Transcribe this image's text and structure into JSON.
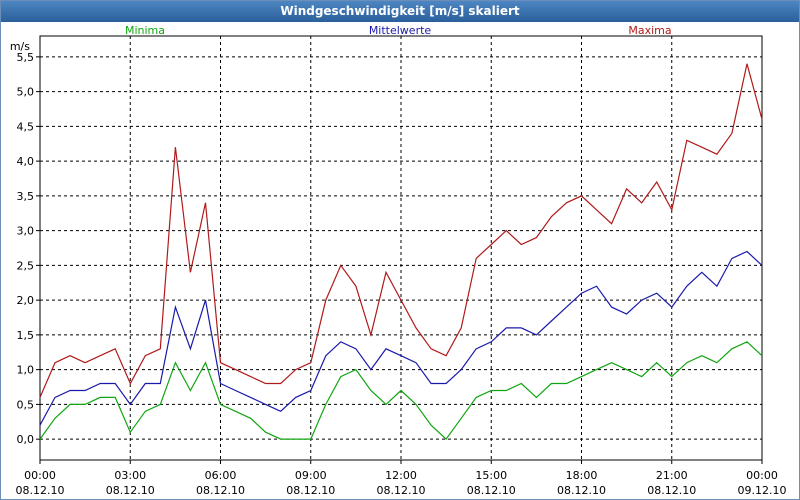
{
  "chart_data": {
    "type": "line",
    "title": "Windgeschwindigkeit [m/s] skaliert",
    "ylabel": "m/s",
    "xlabel": "",
    "ylim": [
      -0.3,
      5.8
    ],
    "y_ticks": [
      "0,0",
      "0,5",
      "1,0",
      "1,5",
      "2,0",
      "2,5",
      "3,0",
      "3,5",
      "4,0",
      "4,5",
      "5,0",
      "5,5"
    ],
    "y_tick_values": [
      0,
      0.5,
      1,
      1.5,
      2,
      2.5,
      3,
      3.5,
      4,
      4.5,
      5,
      5.5
    ],
    "x_ticks": [
      {
        "time": "00:00",
        "date": "08.12.10"
      },
      {
        "time": "03:00",
        "date": "08.12.10"
      },
      {
        "time": "06:00",
        "date": "08.12.10"
      },
      {
        "time": "09:00",
        "date": "08.12.10"
      },
      {
        "time": "12:00",
        "date": "08.12.10"
      },
      {
        "time": "15:00",
        "date": "08.12.10"
      },
      {
        "time": "18:00",
        "date": "08.12.10"
      },
      {
        "time": "21:00",
        "date": "08.12.10"
      },
      {
        "time": "00:00",
        "date": "09.12.10"
      }
    ],
    "x_hours": [
      0,
      0.5,
      1,
      1.5,
      2,
      2.5,
      3,
      3.5,
      4,
      4.5,
      5,
      5.5,
      6,
      6.5,
      7,
      7.5,
      8,
      8.5,
      9,
      9.5,
      10,
      10.5,
      11,
      11.5,
      12,
      12.5,
      13,
      13.5,
      14,
      14.5,
      15,
      15.5,
      16,
      16.5,
      17,
      17.5,
      18,
      18.5,
      19,
      19.5,
      20,
      20.5,
      21,
      21.5,
      22,
      22.5,
      23,
      23.5,
      24
    ],
    "series": [
      {
        "name": "Minima",
        "color": "#11a611",
        "values": [
          0.0,
          0.3,
          0.5,
          0.5,
          0.6,
          0.6,
          0.1,
          0.4,
          0.5,
          1.1,
          0.7,
          1.1,
          0.5,
          0.4,
          0.3,
          0.1,
          0.0,
          0.0,
          0.0,
          0.5,
          0.9,
          1.0,
          0.7,
          0.5,
          0.7,
          0.5,
          0.2,
          0.0,
          0.3,
          0.6,
          0.7,
          0.7,
          0.8,
          0.6,
          0.8,
          0.8,
          0.9,
          1.0,
          1.1,
          1.0,
          0.9,
          1.1,
          0.9,
          1.1,
          1.2,
          1.1,
          1.3,
          1.4,
          1.2
        ]
      },
      {
        "name": "Mittelwerte",
        "color": "#1a1aaa",
        "values": [
          0.2,
          0.6,
          0.7,
          0.7,
          0.8,
          0.8,
          0.5,
          0.8,
          0.8,
          1.9,
          1.3,
          2.0,
          0.8,
          0.7,
          0.6,
          0.5,
          0.4,
          0.6,
          0.7,
          1.2,
          1.4,
          1.3,
          1.0,
          1.3,
          1.2,
          1.1,
          0.8,
          0.8,
          1.0,
          1.3,
          1.4,
          1.6,
          1.6,
          1.5,
          1.7,
          1.9,
          2.1,
          2.2,
          1.9,
          1.8,
          2.0,
          2.1,
          1.9,
          2.2,
          2.4,
          2.2,
          2.6,
          2.7,
          2.5
        ]
      },
      {
        "name": "Maxima",
        "color": "#b01a1a",
        "values": [
          0.6,
          1.1,
          1.2,
          1.1,
          1.2,
          1.3,
          0.8,
          1.2,
          1.3,
          4.2,
          2.4,
          3.4,
          1.1,
          1.0,
          0.9,
          0.8,
          0.8,
          1.0,
          1.1,
          2.0,
          2.5,
          2.2,
          1.5,
          2.4,
          2.0,
          1.6,
          1.3,
          1.2,
          1.6,
          2.6,
          2.8,
          3.0,
          2.8,
          2.9,
          3.2,
          3.4,
          3.5,
          3.3,
          3.1,
          3.6,
          3.4,
          3.7,
          3.3,
          4.3,
          4.2,
          4.1,
          4.4,
          5.4,
          4.6
        ]
      }
    ]
  }
}
